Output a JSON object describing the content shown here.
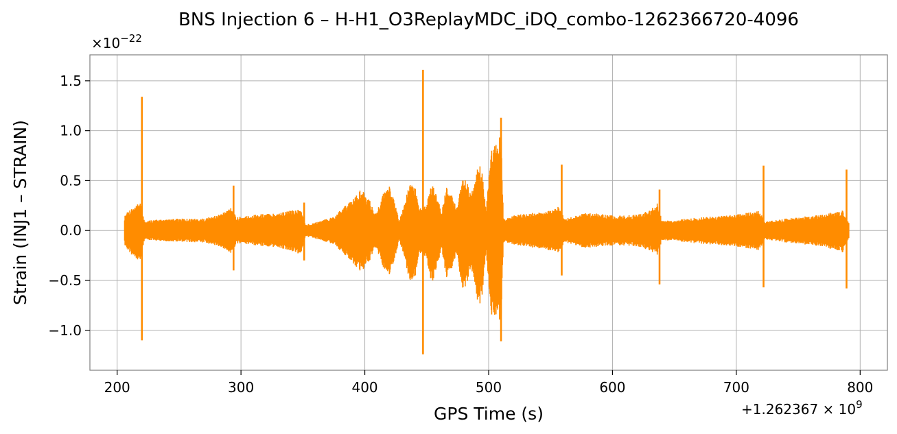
{
  "chart_data": {
    "type": "line",
    "title": "BNS Injection 6 – H-H1_O3ReplayMDC_iDQ_combo-1262366720-4096",
    "xlabel": "GPS Time (s)",
    "ylabel": "Strain (INJ1 – STRAIN)",
    "x_offset_label": "+1.262367 × 10",
    "x_offset_exponent": "9",
    "y_multiplier_label": "×10",
    "y_multiplier_exponent": "−22",
    "xlim": [
      178,
      822
    ],
    "ylim": [
      -1.4,
      1.76
    ],
    "xticks": [
      200,
      300,
      400,
      500,
      600,
      700,
      800
    ],
    "xtick_labels": [
      "200",
      "300",
      "400",
      "500",
      "600",
      "700",
      "800"
    ],
    "yticks": [
      -1.0,
      -0.5,
      0.0,
      0.5,
      1.0,
      1.5
    ],
    "ytick_labels": [
      "−1.0",
      "−0.5",
      "0.0",
      "0.5",
      "1.0",
      "1.5"
    ],
    "grid": true,
    "series": [
      {
        "color": "#ff8c00",
        "x_range": [
          206,
          791
        ],
        "envelope": {
          "x": [
            206,
            208,
            212,
            216,
            218,
            222,
            230,
            240,
            250,
            260,
            270,
            280,
            288,
            292,
            296,
            300,
            310,
            320,
            330,
            340,
            348,
            352,
            356,
            362,
            370,
            376,
            380,
            386,
            392,
            396,
            400,
            404,
            408,
            412,
            416,
            420,
            424,
            428,
            432,
            436,
            440,
            444,
            450,
            454,
            458,
            462,
            466,
            470,
            474,
            478,
            482,
            486,
            490,
            494,
            498,
            502,
            506,
            510,
            512,
            514,
            520,
            530,
            540,
            550,
            556,
            562,
            570,
            580,
            590,
            600,
            610,
            620,
            630,
            636,
            640,
            650,
            660,
            670,
            680,
            690,
            700,
            710,
            718,
            724,
            730,
            740,
            750,
            760,
            770,
            780,
            786,
            791
          ],
          "upper": [
            0.14,
            0.2,
            0.22,
            0.25,
            0.3,
            0.1,
            0.11,
            0.11,
            0.12,
            0.12,
            0.12,
            0.15,
            0.2,
            0.25,
            0.13,
            0.14,
            0.16,
            0.17,
            0.18,
            0.2,
            0.22,
            0.06,
            0.07,
            0.09,
            0.12,
            0.15,
            0.2,
            0.27,
            0.33,
            0.4,
            0.38,
            0.3,
            0.17,
            0.26,
            0.42,
            0.45,
            0.28,
            0.1,
            0.28,
            0.46,
            0.48,
            0.22,
            0.28,
            0.48,
            0.36,
            0.18,
            0.44,
            0.37,
            0.22,
            0.52,
            0.5,
            0.35,
            0.62,
            0.66,
            0.22,
            0.8,
            0.9,
            0.95,
            0.12,
            0.12,
            0.15,
            0.17,
            0.18,
            0.2,
            0.24,
            0.12,
            0.15,
            0.18,
            0.17,
            0.15,
            0.15,
            0.16,
            0.2,
            0.28,
            0.1,
            0.1,
            0.12,
            0.13,
            0.14,
            0.15,
            0.16,
            0.18,
            0.2,
            0.09,
            0.1,
            0.12,
            0.13,
            0.15,
            0.16,
            0.19,
            0.2,
            0.08
          ],
          "lower": [
            -0.14,
            -0.2,
            -0.25,
            -0.28,
            -0.32,
            -0.1,
            -0.1,
            -0.11,
            -0.11,
            -0.12,
            -0.12,
            -0.15,
            -0.2,
            -0.25,
            -0.13,
            -0.13,
            -0.15,
            -0.16,
            -0.18,
            -0.2,
            -0.25,
            -0.06,
            -0.07,
            -0.09,
            -0.12,
            -0.15,
            -0.2,
            -0.27,
            -0.35,
            -0.4,
            -0.38,
            -0.3,
            -0.17,
            -0.26,
            -0.42,
            -0.45,
            -0.28,
            -0.1,
            -0.28,
            -0.5,
            -0.52,
            -0.22,
            -0.3,
            -0.55,
            -0.38,
            -0.18,
            -0.48,
            -0.4,
            -0.22,
            -0.6,
            -0.55,
            -0.35,
            -0.7,
            -0.75,
            -0.22,
            -0.85,
            -0.88,
            -0.9,
            -0.12,
            -0.12,
            -0.14,
            -0.16,
            -0.18,
            -0.2,
            -0.22,
            -0.12,
            -0.15,
            -0.18,
            -0.16,
            -0.15,
            -0.15,
            -0.16,
            -0.2,
            -0.25,
            -0.1,
            -0.1,
            -0.12,
            -0.13,
            -0.14,
            -0.15,
            -0.16,
            -0.18,
            -0.2,
            -0.09,
            -0.1,
            -0.12,
            -0.13,
            -0.15,
            -0.16,
            -0.2,
            -0.22,
            -0.08
          ]
        },
        "spikes": [
          {
            "x": 220,
            "max": 1.34,
            "min": -1.1
          },
          {
            "x": 294,
            "max": 0.45,
            "min": -0.4
          },
          {
            "x": 351,
            "max": 0.28,
            "min": -0.3
          },
          {
            "x": 447,
            "max": 1.61,
            "min": -1.24
          },
          {
            "x": 510,
            "max": 1.13,
            "min": -1.11
          },
          {
            "x": 559,
            "max": 0.66,
            "min": -0.45
          },
          {
            "x": 638,
            "max": 0.41,
            "min": -0.54
          },
          {
            "x": 722,
            "max": 0.65,
            "min": -0.57
          },
          {
            "x": 789,
            "max": 0.61,
            "min": -0.58
          }
        ]
      }
    ]
  }
}
